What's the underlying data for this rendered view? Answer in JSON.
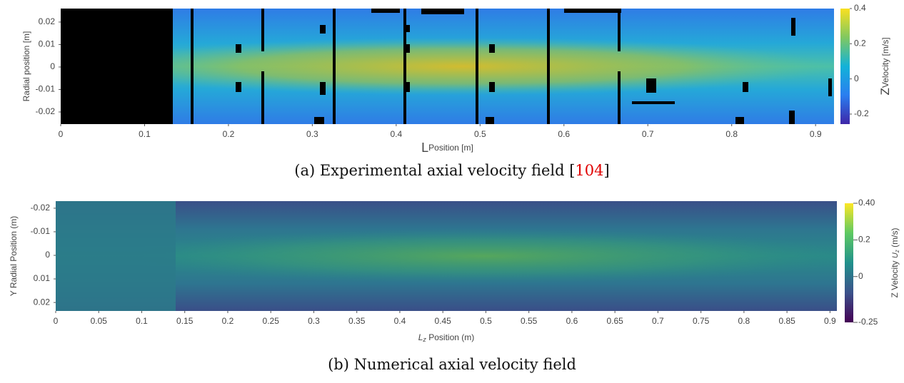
{
  "panels": [
    {
      "ylabel": "Radial position  [m]",
      "xlabel_symbol": "L",
      "xlabel": "Position [m]",
      "xlim": [
        0,
        0.922
      ],
      "xticks": [
        0,
        0.1,
        0.2,
        0.3,
        0.4,
        0.5,
        0.6,
        0.7,
        0.8,
        0.9
      ],
      "ylim": [
        -0.0254,
        0.026
      ],
      "yticks": [
        0.02,
        0.01,
        0,
        -0.01,
        -0.02
      ],
      "y_inverted": false,
      "colorbar": {
        "label_symbol": "Z",
        "label": "Velocity [m/s]",
        "lim": [
          -0.257,
          0.4
        ],
        "ticks": [
          0.4,
          0.2,
          0,
          -0.2
        ]
      },
      "caption": {
        "text": "(a) Experimental axial velocity field [",
        "citation": "104",
        "close": "]"
      }
    },
    {
      "ylabel": "Y Radial Position (m)",
      "xlabel_symbol": "L",
      "xlabel_subscript": "z",
      "xlabel": " Position (m)",
      "xlim": [
        0,
        0.908
      ],
      "xticks": [
        0,
        0.05,
        0.1,
        0.15,
        0.2,
        0.25,
        0.3,
        0.35,
        0.4,
        0.45,
        0.5,
        0.55,
        0.6,
        0.65,
        0.7,
        0.75,
        0.8,
        0.85,
        0.9
      ],
      "ylim": [
        -0.023,
        0.0236
      ],
      "yticks": [
        -0.02,
        -0.01,
        0,
        0.01,
        0.02
      ],
      "y_inverted": true,
      "colorbar": {
        "label_prefix": "Z Velocity ",
        "label_symbol": "U",
        "label_subscript": "z",
        "label": " (m/s)",
        "lim": [
          -0.25,
          0.4
        ],
        "ticks": [
          {
            "value": 0.4,
            "label": "0.40"
          },
          0.2,
          0,
          -0.25
        ]
      },
      "caption": {
        "text": "(b) Numerical axial velocity field"
      }
    }
  ]
}
